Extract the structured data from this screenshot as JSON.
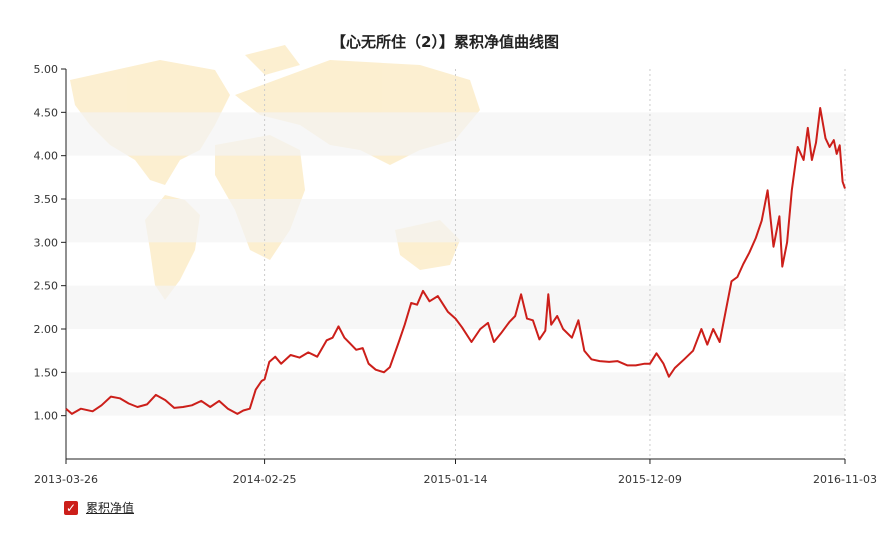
{
  "chart_data": {
    "type": "line",
    "title": "【心无所住（2）】累积净值曲线图",
    "xlabel": "",
    "ylabel": "",
    "ylim": [
      0.5,
      5.0
    ],
    "y_ticks": [
      "1.00",
      "1.50",
      "2.00",
      "2.50",
      "3.00",
      "3.50",
      "4.00",
      "4.50",
      "5.00"
    ],
    "x_ticks": [
      "2013-03-26",
      "2014-02-25",
      "2015-01-14",
      "2015-12-09",
      "2016-11-03"
    ],
    "x_range": [
      "2013-03-26",
      "2016-11-03"
    ],
    "legend_position": "bottom-left",
    "series": [
      {
        "name": "累积净值",
        "color": "#cc1f1a",
        "points": [
          [
            "2013-03-26",
            1.08
          ],
          [
            "2013-04-05",
            1.02
          ],
          [
            "2013-04-20",
            1.08
          ],
          [
            "2013-05-10",
            1.05
          ],
          [
            "2013-05-25",
            1.12
          ],
          [
            "2013-06-10",
            1.22
          ],
          [
            "2013-06-25",
            1.2
          ],
          [
            "2013-07-10",
            1.14
          ],
          [
            "2013-07-25",
            1.1
          ],
          [
            "2013-08-10",
            1.13
          ],
          [
            "2013-08-25",
            1.24
          ],
          [
            "2013-09-10",
            1.18
          ],
          [
            "2013-09-25",
            1.09
          ],
          [
            "2013-10-10",
            1.1
          ],
          [
            "2013-10-25",
            1.12
          ],
          [
            "2013-11-10",
            1.17
          ],
          [
            "2013-11-25",
            1.1
          ],
          [
            "2013-12-10",
            1.17
          ],
          [
            "2013-12-25",
            1.08
          ],
          [
            "2014-01-10",
            1.02
          ],
          [
            "2014-01-20",
            1.06
          ],
          [
            "2014-01-31",
            1.08
          ],
          [
            "2014-02-10",
            1.3
          ],
          [
            "2014-02-20",
            1.4
          ],
          [
            "2014-02-25",
            1.42
          ],
          [
            "2014-03-05",
            1.62
          ],
          [
            "2014-03-15",
            1.68
          ],
          [
            "2014-03-25",
            1.6
          ],
          [
            "2014-04-10",
            1.7
          ],
          [
            "2014-04-25",
            1.67
          ],
          [
            "2014-05-10",
            1.73
          ],
          [
            "2014-05-25",
            1.68
          ],
          [
            "2014-06-10",
            1.87
          ],
          [
            "2014-06-20",
            1.9
          ],
          [
            "2014-06-30",
            2.03
          ],
          [
            "2014-07-10",
            1.9
          ],
          [
            "2014-07-20",
            1.83
          ],
          [
            "2014-07-30",
            1.76
          ],
          [
            "2014-08-10",
            1.78
          ],
          [
            "2014-08-20",
            1.6
          ],
          [
            "2014-09-01",
            1.53
          ],
          [
            "2014-09-15",
            1.5
          ],
          [
            "2014-09-25",
            1.56
          ],
          [
            "2014-10-10",
            1.85
          ],
          [
            "2014-10-20",
            2.05
          ],
          [
            "2014-10-31",
            2.3
          ],
          [
            "2014-11-10",
            2.28
          ],
          [
            "2014-11-20",
            2.44
          ],
          [
            "2014-12-01",
            2.32
          ],
          [
            "2014-12-15",
            2.38
          ],
          [
            "2015-01-01",
            2.2
          ],
          [
            "2015-01-14",
            2.12
          ],
          [
            "2015-01-25",
            2.02
          ],
          [
            "2015-02-10",
            1.85
          ],
          [
            "2015-02-25",
            2.0
          ],
          [
            "2015-03-10",
            2.07
          ],
          [
            "2015-03-20",
            1.85
          ],
          [
            "2015-04-01",
            1.95
          ],
          [
            "2015-04-15",
            2.08
          ],
          [
            "2015-04-25",
            2.15
          ],
          [
            "2015-05-05",
            2.4
          ],
          [
            "2015-05-15",
            2.12
          ],
          [
            "2015-05-25",
            2.1
          ],
          [
            "2015-06-05",
            1.88
          ],
          [
            "2015-06-15",
            1.98
          ],
          [
            "2015-06-20",
            2.4
          ],
          [
            "2015-06-25",
            2.05
          ],
          [
            "2015-07-05",
            2.15
          ],
          [
            "2015-07-15",
            2.0
          ],
          [
            "2015-07-30",
            1.9
          ],
          [
            "2015-08-10",
            2.1
          ],
          [
            "2015-08-20",
            1.75
          ],
          [
            "2015-09-01",
            1.65
          ],
          [
            "2015-09-15",
            1.63
          ],
          [
            "2015-10-01",
            1.62
          ],
          [
            "2015-10-15",
            1.63
          ],
          [
            "2015-11-01",
            1.58
          ],
          [
            "2015-11-15",
            1.58
          ],
          [
            "2015-11-30",
            1.6
          ],
          [
            "2015-12-09",
            1.6
          ],
          [
            "2015-12-20",
            1.72
          ],
          [
            "2016-01-01",
            1.6
          ],
          [
            "2016-01-10",
            1.45
          ],
          [
            "2016-01-20",
            1.55
          ],
          [
            "2016-02-05",
            1.65
          ],
          [
            "2016-02-20",
            1.75
          ],
          [
            "2016-03-05",
            2.0
          ],
          [
            "2016-03-15",
            1.82
          ],
          [
            "2016-03-25",
            2.0
          ],
          [
            "2016-04-05",
            1.85
          ],
          [
            "2016-04-15",
            2.2
          ],
          [
            "2016-04-25",
            2.55
          ],
          [
            "2016-05-05",
            2.6
          ],
          [
            "2016-05-15",
            2.75
          ],
          [
            "2016-05-25",
            2.88
          ],
          [
            "2016-06-05",
            3.05
          ],
          [
            "2016-06-15",
            3.25
          ],
          [
            "2016-06-25",
            3.6
          ],
          [
            "2016-07-05",
            2.95
          ],
          [
            "2016-07-15",
            3.3
          ],
          [
            "2016-07-20",
            2.72
          ],
          [
            "2016-07-28",
            3.0
          ],
          [
            "2016-08-05",
            3.6
          ],
          [
            "2016-08-15",
            4.1
          ],
          [
            "2016-08-25",
            3.95
          ],
          [
            "2016-09-01",
            4.32
          ],
          [
            "2016-09-08",
            3.95
          ],
          [
            "2016-09-15",
            4.15
          ],
          [
            "2016-09-22",
            4.55
          ],
          [
            "2016-10-01",
            4.2
          ],
          [
            "2016-10-08",
            4.1
          ],
          [
            "2016-10-15",
            4.18
          ],
          [
            "2016-10-20",
            4.02
          ],
          [
            "2016-10-25",
            4.12
          ],
          [
            "2016-10-30",
            3.7
          ],
          [
            "2016-11-03",
            3.62
          ]
        ]
      }
    ]
  }
}
